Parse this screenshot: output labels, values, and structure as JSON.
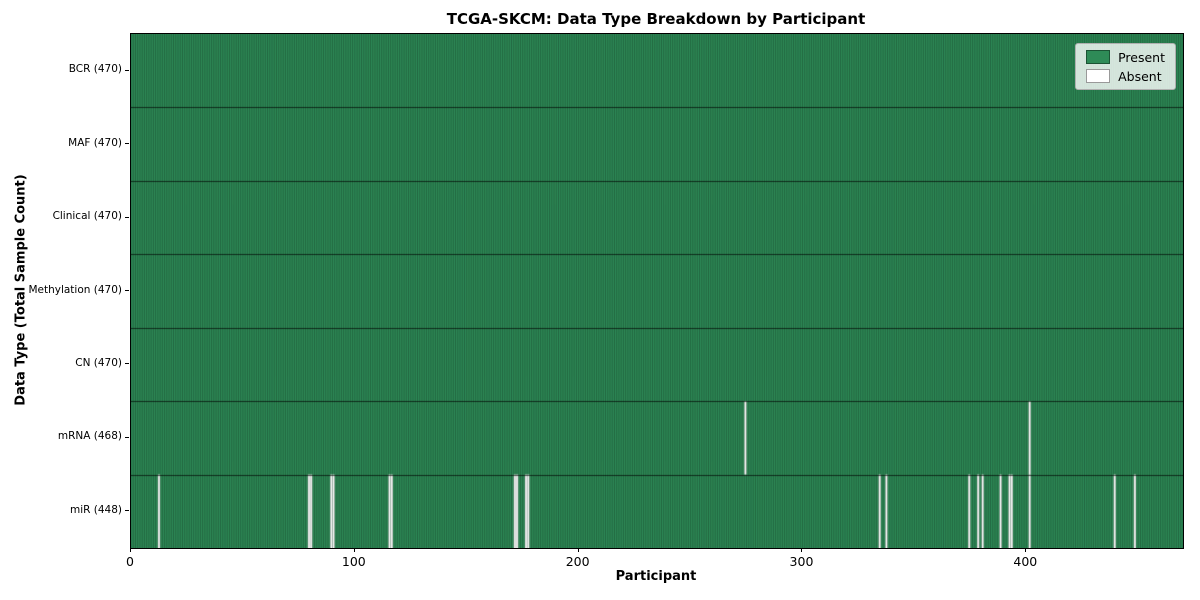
{
  "chart_data": {
    "type": "heatmap",
    "title": "TCGA-SKCM: Data Type Breakdown by Participant",
    "xlabel": "Participant",
    "ylabel": "Data Type (Total Sample Count)",
    "n_participants": 470,
    "x_ticks": [
      0,
      100,
      200,
      300,
      400
    ],
    "legend": [
      {
        "label": "Present",
        "color": "#2e8b57"
      },
      {
        "label": "Absent",
        "color": "#ffffff"
      }
    ],
    "rows": [
      {
        "tick_label": "BCR (470)",
        "data_type": "BCR",
        "present_count": 470,
        "absent_participants": []
      },
      {
        "tick_label": "MAF (470)",
        "data_type": "MAF",
        "present_count": 470,
        "absent_participants": []
      },
      {
        "tick_label": "Clinical (470)",
        "data_type": "Clinical",
        "present_count": 470,
        "absent_participants": []
      },
      {
        "tick_label": "Methylation (470)",
        "data_type": "Methylation",
        "present_count": 470,
        "absent_participants": []
      },
      {
        "tick_label": "CN (470)",
        "data_type": "CN",
        "present_count": 470,
        "absent_participants": []
      },
      {
        "tick_label": "mRNA (468)",
        "data_type": "mRNA",
        "present_count": 468,
        "absent_participants": [
          274,
          401
        ]
      },
      {
        "tick_label": "miR (448)",
        "data_type": "miR",
        "present_count": 448,
        "absent_participants": [
          12,
          79,
          80,
          89,
          90,
          115,
          116,
          171,
          172,
          176,
          177,
          334,
          337,
          374,
          378,
          380,
          388,
          392,
          393,
          401,
          439,
          448
        ]
      }
    ],
    "colors": {
      "present": "#2e8b57",
      "absent": "#ffffff",
      "cell_edge": "rgba(0,0,0,0.5)",
      "row_divider": "rgba(0,0,0,0.65)",
      "legend_face": "rgba(255,255,255,0.8)",
      "legend_edge": "#b0b0b0"
    }
  }
}
